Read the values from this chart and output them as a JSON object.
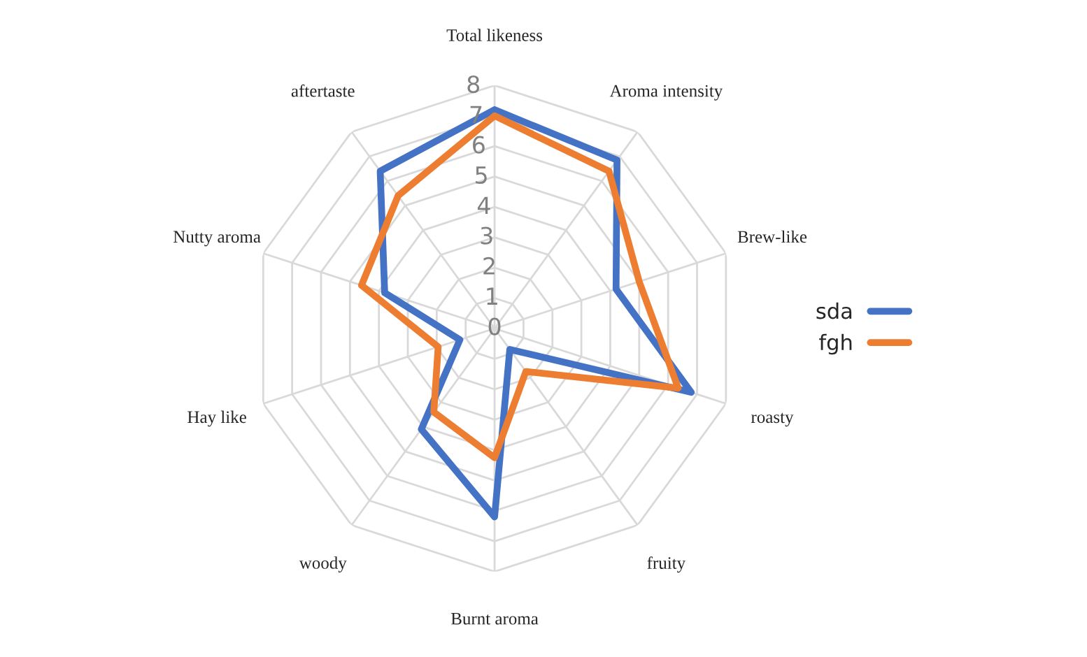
{
  "chart_data": {
    "type": "radar",
    "categories": [
      "Total likeness",
      "Aroma intensity",
      "Brew-like",
      "roasty",
      "fruity",
      "Burnt aroma",
      "woody",
      "Hay like",
      "Nutty aroma",
      "aftertaste"
    ],
    "series": [
      {
        "name": "sda",
        "color": "#4472c4",
        "values": [
          7.2,
          6.85,
          4.2,
          6.8,
          0.85,
          6.2,
          4.1,
          1.2,
          3.8,
          6.4
        ]
      },
      {
        "name": "fgh",
        "color": "#ed7d31",
        "values": [
          7.0,
          6.4,
          5.0,
          6.35,
          1.75,
          4.25,
          3.4,
          1.95,
          4.6,
          5.4
        ]
      }
    ],
    "ylim": [
      0,
      8
    ],
    "yticks": [
      0,
      1,
      2,
      3,
      4,
      5,
      6,
      7,
      8
    ],
    "grid": true,
    "legend": "right"
  }
}
